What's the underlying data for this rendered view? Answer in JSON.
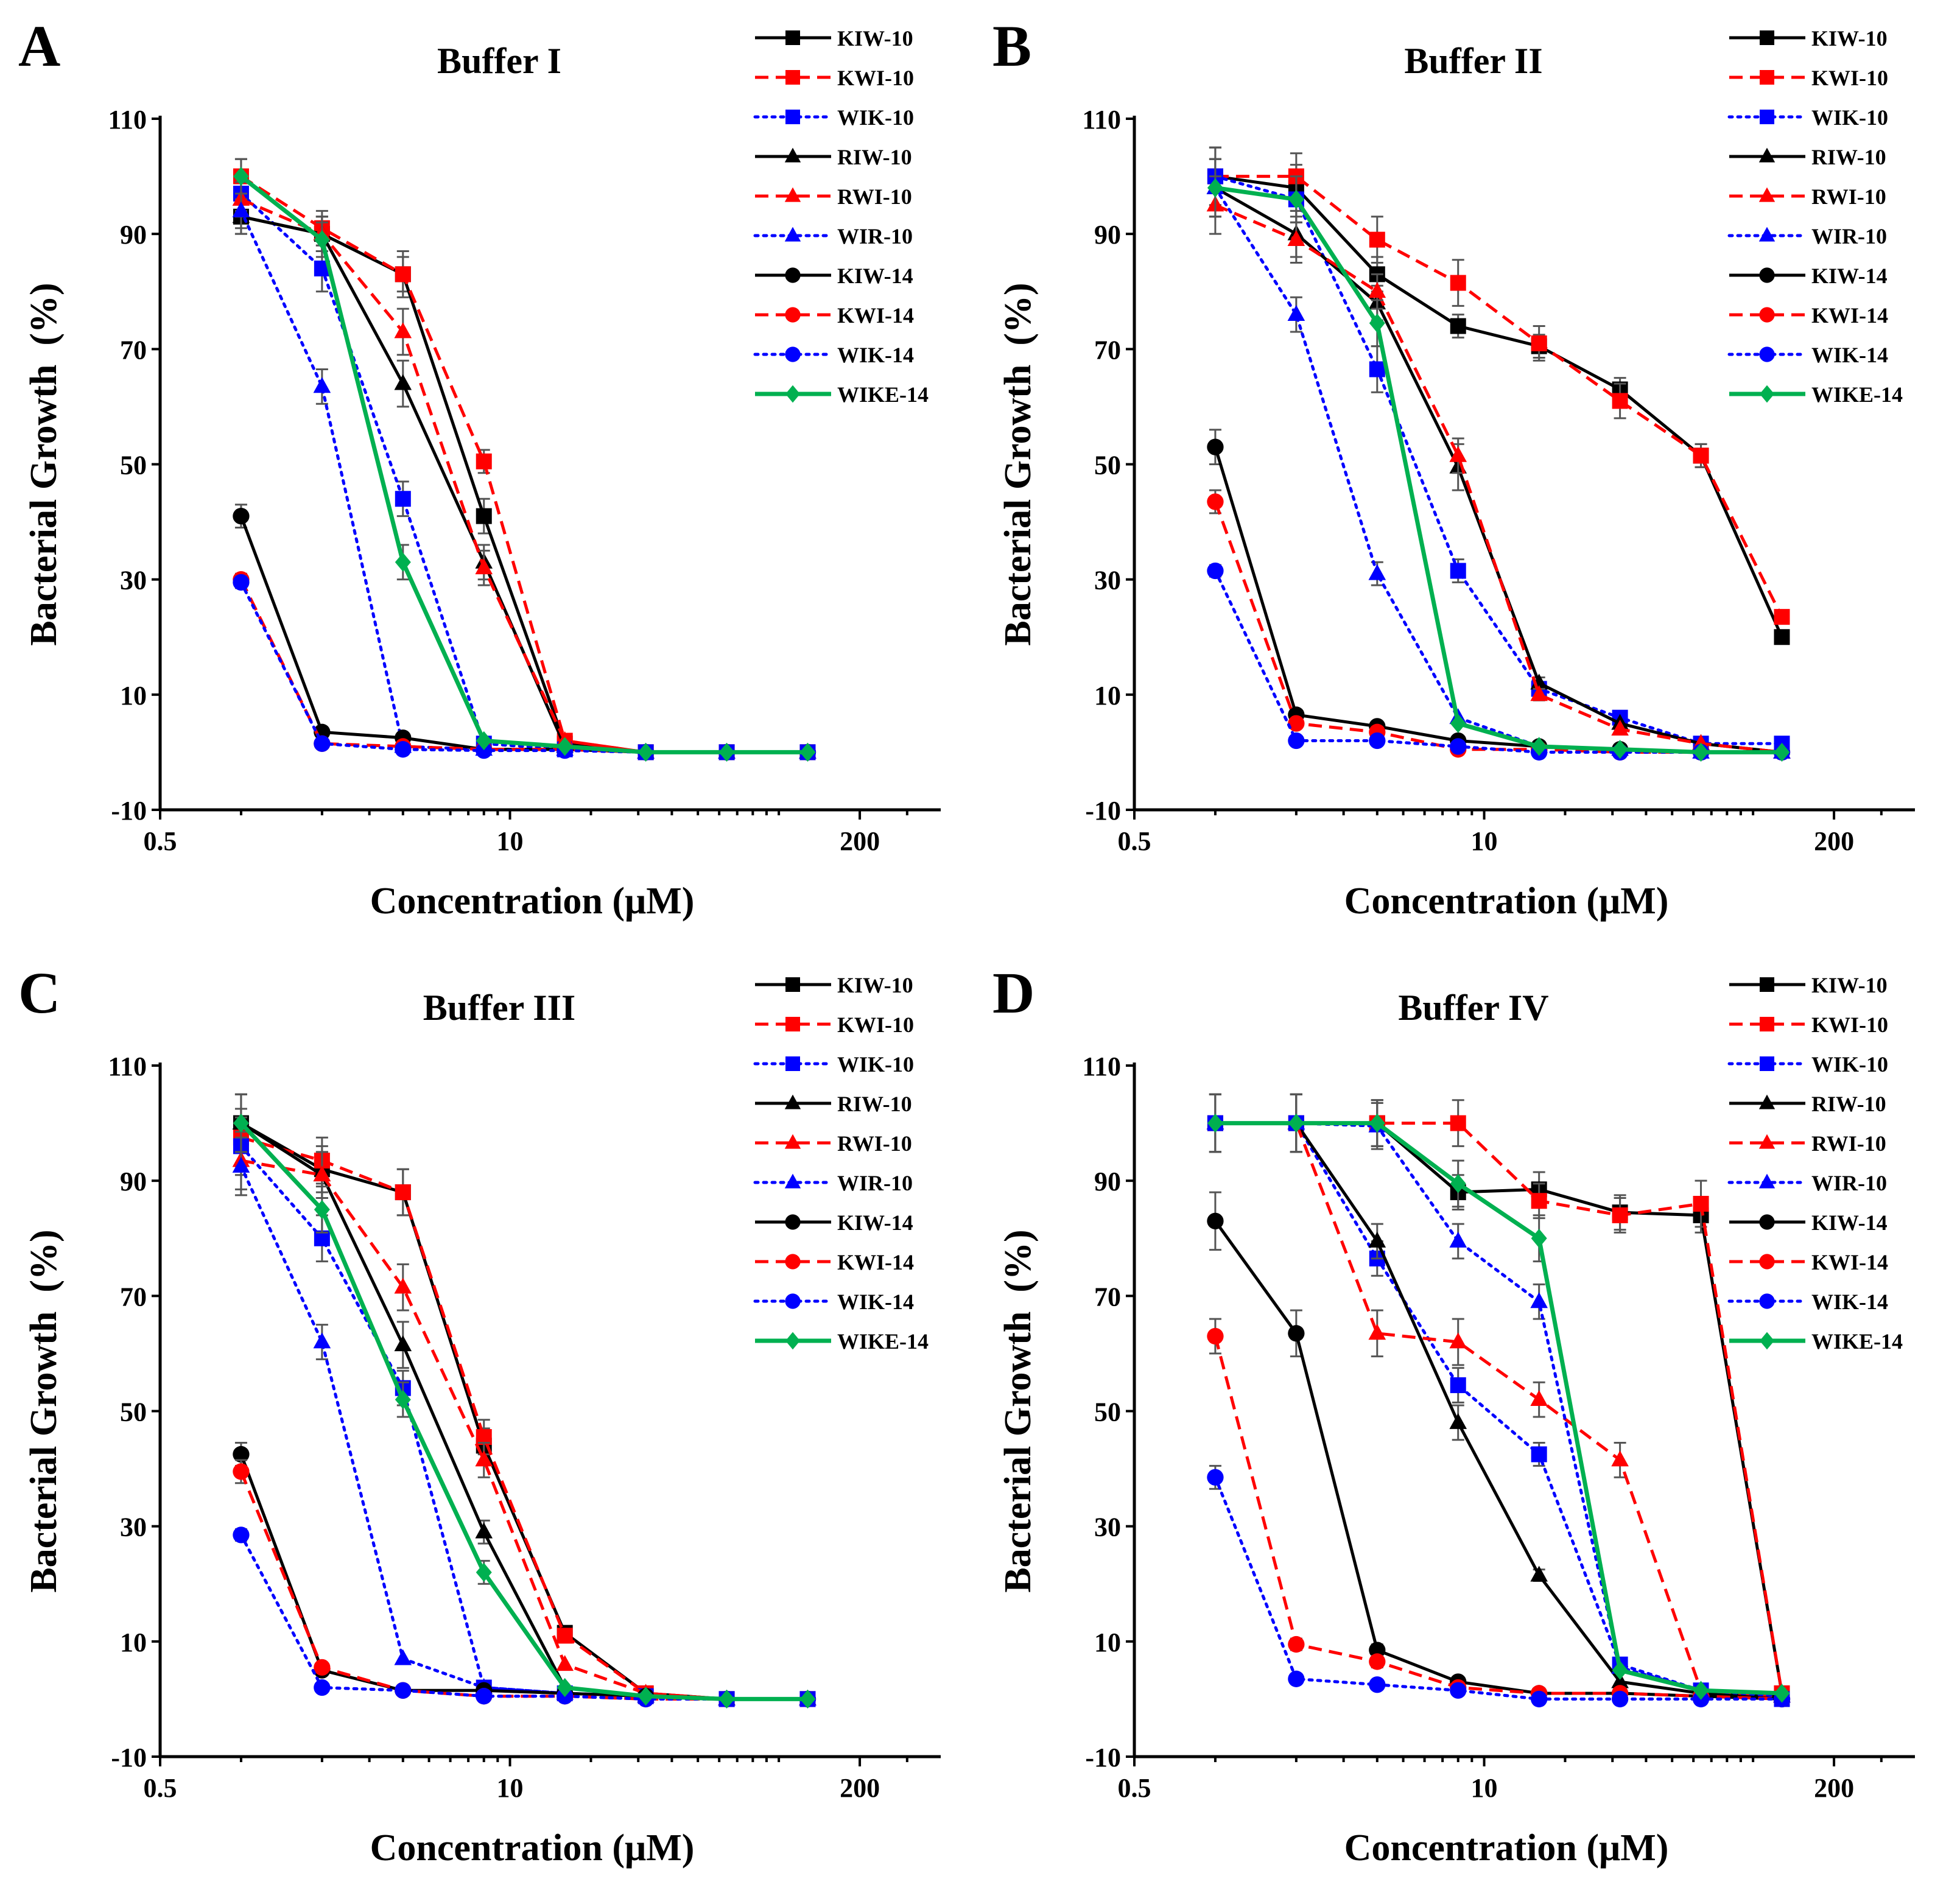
{
  "series_styles": [
    {
      "name": "KIW-10",
      "color": "#000000",
      "dash": "solid",
      "marker": "square"
    },
    {
      "name": "KWI-10",
      "color": "#ff0000",
      "dash": "dashed",
      "marker": "square"
    },
    {
      "name": "WIK-10",
      "color": "#0000ff",
      "dash": "dotted",
      "marker": "square"
    },
    {
      "name": "RIW-10",
      "color": "#000000",
      "dash": "solid",
      "marker": "triangle"
    },
    {
      "name": "RWI-10",
      "color": "#ff0000",
      "dash": "dashed",
      "marker": "triangle"
    },
    {
      "name": "WIR-10",
      "color": "#0000ff",
      "dash": "dotted",
      "marker": "triangle"
    },
    {
      "name": "KIW-14",
      "color": "#000000",
      "dash": "solid",
      "marker": "circle"
    },
    {
      "name": "KWI-14",
      "color": "#ff0000",
      "dash": "dashed",
      "marker": "circle"
    },
    {
      "name": "WIK-14",
      "color": "#0000ff",
      "dash": "dotted",
      "marker": "circle"
    },
    {
      "name": "WIKE-14",
      "color": "#00b050",
      "dash": "solid",
      "marker": "diamond"
    }
  ],
  "chart_data": [
    {
      "panel": "A",
      "type": "line",
      "title": "Buffer I",
      "xlabel": "Concentration (μM)",
      "ylabel": "Bacterial Growth  (%)",
      "xscale": "log",
      "xlim": [
        0.5,
        400
      ],
      "ylim": [
        -10,
        110
      ],
      "yticks": [
        -10,
        10,
        30,
        50,
        70,
        90,
        110
      ],
      "xticks": [
        0.5,
        10,
        200
      ],
      "xtick_labels": [
        "0.5",
        "10",
        "200"
      ],
      "legend": "top-right",
      "x": [
        1,
        2,
        4,
        8,
        16,
        32,
        64,
        128
      ],
      "series": [
        {
          "name": "KIW-10",
          "values": [
            93,
            90,
            83,
            41,
            1.5,
            0,
            0,
            0
          ],
          "errors": [
            3,
            3,
            3,
            3,
            0,
            0,
            0,
            0
          ]
        },
        {
          "name": "KWI-10",
          "values": [
            100,
            91,
            83,
            50.5,
            2,
            0,
            0,
            0
          ],
          "errors": [
            3,
            3,
            4,
            2,
            0,
            0,
            0,
            0
          ]
        },
        {
          "name": "WIK-10",
          "values": [
            97,
            84,
            44,
            1.5,
            0.5,
            0,
            0,
            0
          ],
          "errors": [
            3,
            4,
            3,
            0,
            0,
            0,
            0,
            0
          ]
        },
        {
          "name": "RIW-10",
          "values": [
            93,
            90,
            64,
            33,
            1,
            0,
            0,
            0
          ],
          "errors": [
            3,
            3,
            4,
            3,
            0,
            0,
            0,
            0
          ]
        },
        {
          "name": "RWI-10",
          "values": [
            96,
            90,
            73,
            32,
            2,
            0,
            0,
            0
          ],
          "errors": [
            3,
            3,
            4,
            3,
            0,
            0,
            0,
            0
          ]
        },
        {
          "name": "WIR-10",
          "values": [
            94,
            63.5,
            1,
            0.5,
            0.5,
            0,
            0,
            0
          ],
          "errors": [
            3,
            3,
            0,
            0,
            0,
            0,
            0,
            0
          ]
        },
        {
          "name": "KIW-14",
          "values": [
            41,
            3.5,
            2.5,
            0.5,
            0.5,
            0,
            0,
            0
          ],
          "errors": [
            2,
            0,
            0,
            0,
            0,
            0,
            0,
            0
          ]
        },
        {
          "name": "KWI-14",
          "values": [
            30,
            1.5,
            1,
            0.5,
            0.5,
            0,
            0,
            0
          ],
          "errors": [
            1,
            0,
            0,
            0,
            0,
            0,
            0,
            0
          ]
        },
        {
          "name": "WIK-14",
          "values": [
            29.5,
            1.5,
            0.5,
            0.3,
            0.3,
            0,
            0,
            0
          ],
          "errors": [
            1,
            0,
            0,
            0,
            0,
            0,
            0,
            0
          ]
        },
        {
          "name": "WIKE-14",
          "values": [
            100,
            89,
            33,
            2,
            1,
            0,
            0,
            0
          ],
          "errors": [
            3,
            3,
            3,
            0,
            0,
            0,
            0,
            0
          ]
        }
      ]
    },
    {
      "panel": "B",
      "type": "line",
      "title": "Buffer II",
      "xlabel": "Concentration (μM)",
      "ylabel": "Bacterial Growth  (%)",
      "xscale": "log",
      "xlim": [
        0.5,
        400
      ],
      "ylim": [
        -10,
        110
      ],
      "yticks": [
        -10,
        10,
        30,
        50,
        70,
        90,
        110
      ],
      "xticks": [
        0.5,
        10,
        200
      ],
      "xtick_labels": [
        "0.5",
        "10",
        "200"
      ],
      "legend": "top-right",
      "x": [
        1,
        2,
        4,
        8,
        16,
        32,
        64,
        128
      ],
      "series": [
        {
          "name": "KIW-10",
          "values": [
            100,
            98,
            83,
            74,
            70.5,
            63,
            51.5,
            20
          ],
          "errors": [
            5,
            4,
            3,
            2,
            2,
            2,
            2,
            1
          ]
        },
        {
          "name": "KWI-10",
          "values": [
            100,
            100,
            89,
            81.5,
            71,
            61,
            51.5,
            23.5
          ],
          "errors": [
            5,
            4,
            4,
            4,
            3,
            3,
            2,
            1
          ]
        },
        {
          "name": "WIK-10",
          "values": [
            100,
            96,
            66.5,
            31.5,
            11,
            6,
            1.5,
            1.5
          ],
          "errors": [
            5,
            4,
            4,
            2,
            1,
            0,
            0,
            0
          ]
        },
        {
          "name": "RIW-10",
          "values": [
            98,
            90,
            78,
            49.5,
            12,
            5,
            1.5,
            0
          ],
          "errors": [
            5,
            4,
            3,
            4,
            1,
            0,
            0,
            0
          ]
        },
        {
          "name": "RWI-10",
          "values": [
            95,
            89,
            80,
            51.5,
            10,
            4,
            1.5,
            0
          ],
          "errors": [
            5,
            4,
            3,
            3,
            1,
            0,
            0,
            0
          ]
        },
        {
          "name": "WIR-10",
          "values": [
            98,
            76,
            31,
            6,
            1,
            0.5,
            0,
            0
          ],
          "errors": [
            5,
            3,
            2,
            0,
            0,
            0,
            0,
            0
          ]
        },
        {
          "name": "KIW-14",
          "values": [
            53,
            6.5,
            4.5,
            2,
            1,
            0.5,
            0,
            0
          ],
          "errors": [
            3,
            0,
            0,
            0,
            0,
            0,
            0,
            0
          ]
        },
        {
          "name": "KWI-14",
          "values": [
            43.5,
            5,
            3.5,
            0.5,
            0.5,
            0,
            0,
            0
          ],
          "errors": [
            2,
            0,
            0,
            0,
            0,
            0,
            0,
            0
          ]
        },
        {
          "name": "WIK-14",
          "values": [
            31.5,
            2,
            2,
            1,
            0,
            0,
            0,
            0
          ],
          "errors": [
            1,
            0,
            0,
            0,
            0,
            0,
            0,
            0
          ]
        },
        {
          "name": "WIKE-14",
          "values": [
            98,
            96,
            74.5,
            5,
            1,
            0.5,
            0,
            0
          ],
          "errors": [
            5,
            4,
            4,
            0,
            0,
            0,
            0,
            0
          ]
        }
      ]
    },
    {
      "panel": "C",
      "type": "line",
      "title": "Buffer III",
      "xlabel": "Concentration (μM)",
      "ylabel": "Bacterial Growth  (%)",
      "xscale": "log",
      "xlim": [
        0.5,
        400
      ],
      "ylim": [
        -10,
        110
      ],
      "yticks": [
        -10,
        10,
        30,
        50,
        70,
        90,
        110
      ],
      "xticks": [
        0.5,
        10,
        200
      ],
      "xtick_labels": [
        "0.5",
        "10",
        "200"
      ],
      "legend": "top-right",
      "x": [
        1,
        2,
        4,
        8,
        16,
        32,
        64,
        128
      ],
      "series": [
        {
          "name": "KIW-10",
          "values": [
            100,
            92,
            88,
            44,
            11.5,
            1,
            0,
            0
          ],
          "errors": [
            5,
            4,
            4,
            3,
            1,
            0,
            0,
            0
          ]
        },
        {
          "name": "KWI-10",
          "values": [
            97.5,
            93.5,
            88,
            45.5,
            11,
            1,
            0,
            0
          ],
          "errors": [
            5,
            4,
            4,
            3,
            1,
            0,
            0,
            0
          ]
        },
        {
          "name": "WIK-10",
          "values": [
            96,
            80,
            54,
            2,
            1,
            0.5,
            0,
            0
          ],
          "errors": [
            5,
            4,
            3,
            0,
            0,
            0,
            0,
            0
          ]
        },
        {
          "name": "RIW-10",
          "values": [
            100,
            91,
            61.5,
            29,
            2,
            0.5,
            0,
            0
          ],
          "errors": [
            5,
            4,
            4,
            2,
            0,
            0,
            0,
            0
          ]
        },
        {
          "name": "RWI-10",
          "values": [
            93.5,
            91,
            71.5,
            41.5,
            6,
            1,
            0,
            0
          ],
          "errors": [
            5,
            4,
            4,
            3,
            0,
            0,
            0,
            0
          ]
        },
        {
          "name": "WIR-10",
          "values": [
            92.5,
            62,
            7,
            2,
            1,
            0.5,
            0,
            0
          ],
          "errors": [
            5,
            3,
            0,
            0,
            0,
            0,
            0,
            0
          ]
        },
        {
          "name": "KIW-14",
          "values": [
            42.5,
            5,
            1.5,
            1.5,
            1,
            0.5,
            0,
            0
          ],
          "errors": [
            2,
            0,
            0,
            0,
            0,
            0,
            0,
            0
          ]
        },
        {
          "name": "KWI-14",
          "values": [
            39.5,
            5.5,
            1.5,
            0.5,
            0.5,
            0,
            0,
            0
          ],
          "errors": [
            2,
            0,
            0,
            0,
            0,
            0,
            0,
            0
          ]
        },
        {
          "name": "WIK-14",
          "values": [
            28.5,
            2,
            1.5,
            0.5,
            0.5,
            0,
            0,
            0
          ],
          "errors": [
            1,
            0,
            0,
            0,
            0,
            0,
            0,
            0
          ]
        },
        {
          "name": "WIKE-14",
          "values": [
            100,
            85,
            52,
            22,
            2,
            0.5,
            0,
            0
          ],
          "errors": [
            5,
            4,
            3,
            2,
            0,
            0,
            0,
            0
          ]
        }
      ]
    },
    {
      "panel": "D",
      "type": "line",
      "title": "Buffer IV",
      "xlabel": "Concentration (μM)",
      "ylabel": "Bacterial Growth  (%)",
      "xscale": "log",
      "xlim": [
        0.5,
        400
      ],
      "ylim": [
        -10,
        110
      ],
      "yticks": [
        -10,
        10,
        30,
        50,
        70,
        90,
        110
      ],
      "xticks": [
        0.5,
        10,
        200
      ],
      "xtick_labels": [
        "0.5",
        "10",
        "200"
      ],
      "legend": "top-right",
      "x": [
        1,
        2,
        4,
        8,
        16,
        32,
        64,
        128
      ],
      "series": [
        {
          "name": "KIW-10",
          "values": [
            100,
            100,
            100,
            88,
            88.5,
            84.5,
            84,
            1
          ],
          "errors": [
            5,
            5,
            4,
            3,
            3,
            3,
            3,
            0
          ]
        },
        {
          "name": "KWI-10",
          "values": [
            100,
            100,
            100,
            100,
            86.5,
            84,
            86,
            1
          ],
          "errors": [
            5,
            5,
            4,
            4,
            3,
            3,
            4,
            0
          ]
        },
        {
          "name": "WIK-10",
          "values": [
            100,
            100,
            76.5,
            54.5,
            42.5,
            6,
            1.5,
            0
          ],
          "errors": [
            5,
            5,
            3,
            3,
            2,
            0,
            0,
            0
          ]
        },
        {
          "name": "RIW-10",
          "values": [
            100,
            100,
            79.5,
            48,
            21.5,
            3,
            1,
            0.5
          ],
          "errors": [
            5,
            5,
            3,
            3,
            1,
            0,
            0,
            0
          ]
        },
        {
          "name": "RWI-10",
          "values": [
            100,
            100,
            63.5,
            62,
            52,
            41.5,
            1.5,
            0.5
          ],
          "errors": [
            5,
            5,
            4,
            4,
            3,
            3,
            0,
            0
          ]
        },
        {
          "name": "WIR-10",
          "values": [
            100,
            100,
            99.5,
            79.5,
            69,
            5.5,
            1.5,
            0.5
          ],
          "errors": [
            5,
            5,
            4,
            3,
            3,
            0,
            0,
            0
          ]
        },
        {
          "name": "KIW-14",
          "values": [
            83,
            63.5,
            8.5,
            3,
            1,
            1,
            0.5,
            0
          ],
          "errors": [
            5,
            4,
            1,
            0,
            0,
            0,
            0,
            0
          ]
        },
        {
          "name": "KWI-14",
          "values": [
            63,
            9.5,
            6.5,
            2,
            1,
            1,
            0.5,
            0
          ],
          "errors": [
            3,
            1,
            1,
            0,
            0,
            0,
            0,
            0
          ]
        },
        {
          "name": "WIK-14",
          "values": [
            38.5,
            3.5,
            2.5,
            1.5,
            0,
            0,
            0,
            0
          ],
          "errors": [
            2,
            0,
            0,
            0,
            0,
            0,
            0,
            0
          ]
        },
        {
          "name": "WIKE-14",
          "values": [
            100,
            100,
            100,
            89.5,
            80,
            5,
            1.5,
            1
          ],
          "errors": [
            5,
            5,
            4,
            4,
            4,
            0,
            0,
            0
          ]
        }
      ]
    }
  ]
}
